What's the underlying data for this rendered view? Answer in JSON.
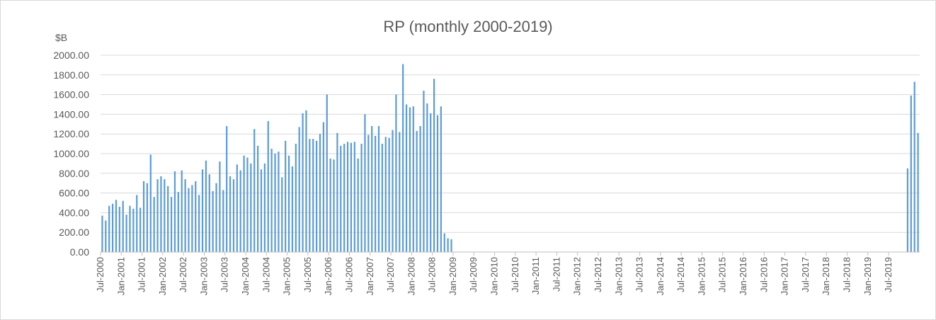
{
  "chart_data": {
    "type": "bar",
    "title": "RP (monthly 2000-2019)",
    "ylabel": "$B",
    "xlabel": "",
    "ylim": [
      0,
      2000
    ],
    "y_ticks": [
      "0.00",
      "200.00",
      "400.00",
      "600.00",
      "800.00",
      "1000.00",
      "1200.00",
      "1400.00",
      "1600.00",
      "1800.00",
      "2000.00"
    ],
    "grid": true,
    "start_month": "Jul-2000",
    "x_tick_labels": [
      "Jul-2000",
      "Jan-2001",
      "Jul-2001",
      "Jan-2002",
      "Jul-2002",
      "Jan-2003",
      "Jul-2003",
      "Jan-2004",
      "Jul-2004",
      "Jan-2005",
      "Jul-2005",
      "Jan-2006",
      "Jul-2006",
      "Jan-2007",
      "Jul-2007",
      "Jan-2008",
      "Jul-2008",
      "Jan-2009",
      "Jul-2009",
      "Jan-2010",
      "Jul-2010",
      "Jan-2011",
      "Jul-2011",
      "Jan-2012",
      "Jul-2012",
      "Jan-2013",
      "Jul-2013",
      "Jan-2014",
      "Jul-2014",
      "Jan-2015",
      "Jul-2015",
      "Jan-2016",
      "Jul-2016",
      "Jan-2017",
      "Jul-2017",
      "Jan-2018",
      "Jul-2018",
      "Jan-2019",
      "Jul-2019"
    ],
    "color": "#5b9bd5",
    "values": [
      370,
      320,
      470,
      490,
      530,
      460,
      520,
      380,
      470,
      440,
      580,
      450,
      720,
      700,
      990,
      560,
      740,
      770,
      740,
      670,
      560,
      820,
      610,
      830,
      740,
      650,
      680,
      720,
      580,
      840,
      930,
      790,
      620,
      700,
      920,
      630,
      1280,
      770,
      740,
      890,
      830,
      980,
      960,
      900,
      1250,
      1080,
      840,
      900,
      1330,
      1050,
      1000,
      1020,
      760,
      1130,
      980,
      870,
      1100,
      1270,
      1410,
      1440,
      1150,
      1150,
      1130,
      1200,
      1320,
      1600,
      950,
      940,
      1210,
      1080,
      1100,
      1120,
      1110,
      1120,
      950,
      1100,
      1400,
      1190,
      1280,
      1180,
      1280,
      1100,
      1170,
      1160,
      1240,
      1600,
      1220,
      1910,
      1500,
      1470,
      1480,
      1230,
      1280,
      1640,
      1510,
      1410,
      1760,
      1390,
      1480,
      190,
      140,
      130,
      0,
      0,
      0,
      0,
      0,
      0,
      0,
      0,
      0,
      0,
      0,
      0,
      0,
      0,
      0,
      0,
      0,
      0,
      0,
      0,
      0,
      0,
      0,
      0,
      0,
      0,
      0,
      0,
      0,
      0,
      0,
      0,
      0,
      0,
      0,
      0,
      0,
      0,
      0,
      0,
      0,
      0,
      0,
      0,
      0,
      0,
      0,
      0,
      0,
      0,
      0,
      0,
      0,
      0,
      0,
      0,
      0,
      0,
      0,
      0,
      0,
      0,
      0,
      0,
      0,
      0,
      0,
      0,
      0,
      0,
      0,
      0,
      0,
      0,
      0,
      0,
      0,
      0,
      0,
      0,
      0,
      0,
      0,
      0,
      0,
      0,
      0,
      0,
      0,
      0,
      0,
      0,
      0,
      0,
      0,
      0,
      0,
      0,
      0,
      0,
      0,
      0,
      0,
      0,
      0,
      0,
      0,
      0,
      0,
      0,
      0,
      0,
      0,
      0,
      0,
      0,
      0,
      0,
      0,
      0,
      0,
      0,
      0,
      0,
      0,
      0,
      0,
      0,
      0,
      0,
      0,
      850,
      1590,
      1730,
      1210
    ]
  }
}
